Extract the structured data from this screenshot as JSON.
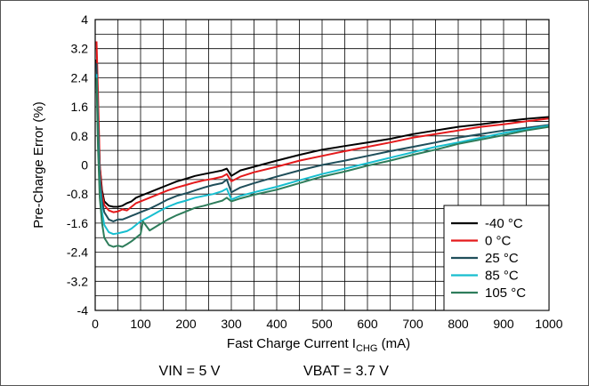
{
  "chart_data": {
    "type": "line",
    "title": "",
    "xlabel_main": "Fast Charge Current I",
    "xlabel_sub": "CHG",
    "xlabel_unit": " (mA)",
    "ylabel": "Pre-Charge Error (%)",
    "xlim": [
      0,
      1000
    ],
    "ylim": [
      -4,
      4
    ],
    "x_ticks": [
      0,
      100,
      200,
      300,
      400,
      500,
      600,
      700,
      800,
      900,
      1000
    ],
    "y_ticks": [
      4,
      3.2,
      2.4,
      1.6,
      0.8,
      0,
      -0.8,
      -1.6,
      -2.4,
      -3.2,
      -4
    ],
    "x_tick_labels": [
      "0",
      "100",
      "200",
      "300",
      "400",
      "500",
      "600",
      "700",
      "800",
      "900",
      "1000"
    ],
    "y_tick_labels": [
      "4",
      "3.2",
      "2.4",
      "1.6",
      "0.8",
      "0",
      "-0.8",
      "-1.6",
      "-2.4",
      "-3.2",
      "-4"
    ],
    "grid": true,
    "legend_position": "bottom-right",
    "conditions": [
      "VIN = 5 V",
      "VBAT = 3.7 V"
    ],
    "series": [
      {
        "name": "-40 °C",
        "color": "#000000",
        "x": [
          3,
          6,
          10,
          15,
          20,
          30,
          40,
          50,
          60,
          70,
          80,
          90,
          100,
          120,
          140,
          160,
          180,
          200,
          220,
          240,
          260,
          280,
          290,
          300,
          320,
          350,
          400,
          450,
          500,
          550,
          600,
          650,
          700,
          750,
          800,
          850,
          900,
          950,
          1000
        ],
        "y": [
          2.9,
          1.5,
          0.0,
          -0.7,
          -1.0,
          -1.12,
          -1.15,
          -1.15,
          -1.12,
          -1.05,
          -1.0,
          -0.9,
          -0.85,
          -0.75,
          -0.65,
          -0.55,
          -0.45,
          -0.38,
          -0.3,
          -0.25,
          -0.2,
          -0.15,
          -0.1,
          -0.3,
          -0.15,
          -0.05,
          0.12,
          0.28,
          0.42,
          0.52,
          0.62,
          0.72,
          0.85,
          0.95,
          1.05,
          1.12,
          1.2,
          1.27,
          1.32
        ]
      },
      {
        "name": "0 °C",
        "color": "#e41a1c",
        "x": [
          3,
          6,
          10,
          15,
          20,
          30,
          40,
          50,
          60,
          70,
          80,
          90,
          100,
          120,
          140,
          160,
          180,
          200,
          220,
          240,
          260,
          280,
          290,
          300,
          320,
          350,
          400,
          450,
          500,
          550,
          600,
          650,
          700,
          750,
          800,
          850,
          900,
          950,
          1000
        ],
        "y": [
          3.4,
          2.0,
          0.0,
          -0.8,
          -1.1,
          -1.25,
          -1.3,
          -1.28,
          -1.22,
          -1.25,
          -1.15,
          -1.05,
          -1.0,
          -0.9,
          -0.8,
          -0.7,
          -0.62,
          -0.55,
          -0.48,
          -0.42,
          -0.38,
          -0.32,
          -0.25,
          -0.45,
          -0.32,
          -0.2,
          -0.05,
          0.12,
          0.25,
          0.38,
          0.5,
          0.62,
          0.75,
          0.85,
          0.95,
          1.05,
          1.12,
          1.2,
          1.28
        ]
      },
      {
        "name": "25 °C",
        "color": "#1f4e5a",
        "x": [
          3,
          6,
          10,
          15,
          20,
          30,
          40,
          50,
          60,
          70,
          80,
          90,
          100,
          120,
          140,
          160,
          180,
          200,
          220,
          240,
          260,
          280,
          290,
          300,
          320,
          350,
          400,
          450,
          500,
          550,
          600,
          650,
          700,
          750,
          800,
          850,
          900,
          950,
          1000
        ],
        "y": [
          2.8,
          1.2,
          -0.3,
          -1.0,
          -1.3,
          -1.5,
          -1.55,
          -1.5,
          -1.5,
          -1.45,
          -1.4,
          -1.35,
          -1.3,
          -1.2,
          -1.08,
          -0.95,
          -0.85,
          -0.78,
          -0.7,
          -0.62,
          -0.55,
          -0.5,
          -0.4,
          -0.75,
          -0.62,
          -0.5,
          -0.32,
          -0.15,
          0.0,
          0.12,
          0.25,
          0.38,
          0.5,
          0.62,
          0.75,
          0.85,
          0.95,
          1.02,
          1.1
        ]
      },
      {
        "name": "85 °C",
        "color": "#17becf",
        "x": [
          3,
          6,
          10,
          15,
          20,
          30,
          40,
          50,
          60,
          70,
          80,
          90,
          100,
          120,
          140,
          160,
          180,
          200,
          220,
          240,
          260,
          280,
          290,
          300,
          320,
          350,
          400,
          450,
          500,
          550,
          600,
          650,
          700,
          750,
          800,
          850,
          900,
          950,
          1000
        ],
        "y": [
          2.5,
          0.8,
          -0.6,
          -1.3,
          -1.65,
          -1.85,
          -1.9,
          -1.88,
          -1.85,
          -1.82,
          -1.75,
          -1.65,
          -1.55,
          -1.42,
          -1.28,
          -1.15,
          -1.05,
          -0.98,
          -0.9,
          -0.85,
          -0.8,
          -0.72,
          -0.65,
          -0.95,
          -0.85,
          -0.75,
          -0.6,
          -0.42,
          -0.25,
          -0.1,
          0.05,
          0.2,
          0.35,
          0.5,
          0.62,
          0.75,
          0.88,
          0.98,
          1.08
        ]
      },
      {
        "name": "105 °C",
        "color": "#2e7d5b",
        "x": [
          3,
          6,
          10,
          15,
          20,
          30,
          40,
          50,
          60,
          70,
          80,
          90,
          100,
          105,
          120,
          140,
          160,
          180,
          200,
          220,
          240,
          260,
          280,
          290,
          300,
          320,
          350,
          400,
          450,
          500,
          550,
          600,
          650,
          700,
          750,
          800,
          850,
          900,
          950,
          1000
        ],
        "y": [
          2.4,
          0.5,
          -0.9,
          -1.6,
          -2.0,
          -2.2,
          -2.25,
          -2.22,
          -2.25,
          -2.18,
          -2.1,
          -2.0,
          -1.9,
          -1.55,
          -1.8,
          -1.65,
          -1.5,
          -1.38,
          -1.28,
          -1.18,
          -1.12,
          -1.05,
          -0.98,
          -0.9,
          -1.0,
          -0.92,
          -0.82,
          -0.68,
          -0.5,
          -0.32,
          -0.18,
          -0.02,
          0.12,
          0.28,
          0.42,
          0.58,
          0.7,
          0.82,
          0.95,
          1.05
        ]
      }
    ]
  }
}
